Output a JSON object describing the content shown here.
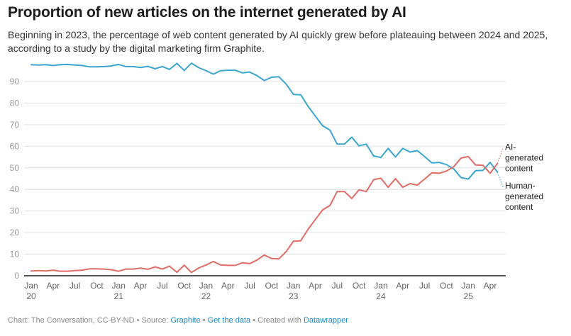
{
  "header": {
    "title": "Proportion of new articles on the internet generated by AI",
    "subtitle": "Beginning in 2023, the percentage of web content generated by AI quickly grew before plateauing between 2024 and 2025, according to a study by the digital marketing firm Graphite."
  },
  "footer": {
    "chart_credit": "Chart: The Conversation, CC-BY-ND",
    "sep": " • ",
    "source_label": "Source: ",
    "source_link": "Graphite",
    "data_link": "Get the data",
    "created_label": "Created with ",
    "created_link": "Datawrapper"
  },
  "colors": {
    "ai": "#e06c66",
    "human": "#3aa6cf",
    "grid": "#e0e0e0",
    "axis": "#1d1d1d",
    "tick_text": "#9a9a9a"
  },
  "chart_data": {
    "type": "line",
    "title": "Proportion of new articles on the internet generated by AI",
    "xlabel": "",
    "ylabel": "",
    "ylim": [
      0,
      100
    ],
    "yticks": [
      0,
      10,
      20,
      30,
      40,
      50,
      60,
      70,
      80,
      90
    ],
    "grid": true,
    "x_start": "2020-01",
    "x_step": "month",
    "xticks": [
      {
        "i": 0,
        "label": "Jan",
        "year": "20"
      },
      {
        "i": 3,
        "label": "Apr",
        "year": ""
      },
      {
        "i": 6,
        "label": "Jul",
        "year": ""
      },
      {
        "i": 9,
        "label": "Oct",
        "year": ""
      },
      {
        "i": 12,
        "label": "Jan",
        "year": "21"
      },
      {
        "i": 15,
        "label": "Apr",
        "year": ""
      },
      {
        "i": 18,
        "label": "Jul",
        "year": ""
      },
      {
        "i": 21,
        "label": "Oct",
        "year": ""
      },
      {
        "i": 24,
        "label": "Jan",
        "year": "22"
      },
      {
        "i": 27,
        "label": "Apr",
        "year": ""
      },
      {
        "i": 30,
        "label": "Jul",
        "year": ""
      },
      {
        "i": 33,
        "label": "Oct",
        "year": ""
      },
      {
        "i": 36,
        "label": "Jan",
        "year": "23"
      },
      {
        "i": 39,
        "label": "Apr",
        "year": ""
      },
      {
        "i": 42,
        "label": "Jul",
        "year": ""
      },
      {
        "i": 45,
        "label": "Oct",
        "year": ""
      },
      {
        "i": 48,
        "label": "Jan",
        "year": "24"
      },
      {
        "i": 51,
        "label": "Apr",
        "year": ""
      },
      {
        "i": 54,
        "label": "Jul",
        "year": ""
      },
      {
        "i": 57,
        "label": "Oct",
        "year": ""
      },
      {
        "i": 60,
        "label": "Jan",
        "year": "25"
      },
      {
        "i": 63,
        "label": "Apr",
        "year": ""
      }
    ],
    "series": [
      {
        "name": "Human-generated content",
        "label_lines": [
          "Human-",
          "generated",
          "content"
        ],
        "color": "#3aa6cf",
        "values": [
          97.8,
          97.6,
          97.8,
          97.4,
          97.8,
          97.9,
          97.6,
          97.4,
          96.8,
          96.8,
          96.9,
          97.2,
          97.9,
          96.9,
          96.9,
          96.5,
          97.0,
          95.9,
          96.9,
          95.6,
          98.4,
          95.1,
          98.5,
          96.4,
          95.0,
          93.4,
          95.0,
          95.2,
          95.2,
          94.0,
          94.4,
          92.7,
          90.4,
          92.0,
          92.2,
          88.8,
          84.0,
          83.8,
          78.5,
          74.0,
          69.5,
          67.5,
          61.0,
          61.0,
          64.2,
          60.2,
          61.0,
          55.5,
          54.8,
          59.0,
          55.0,
          59.0,
          57.3,
          58.0,
          55.2,
          52.3,
          52.5,
          51.5,
          49.5,
          45.5,
          44.8,
          48.7,
          48.8,
          52.5,
          48.0
        ],
        "end_extension": 41.0
      },
      {
        "name": "AI-generated content",
        "label_lines": [
          "AI-",
          "generated",
          "content"
        ],
        "color": "#e06c66",
        "values": [
          2.2,
          2.4,
          2.2,
          2.6,
          2.1,
          2.1,
          2.4,
          2.6,
          3.2,
          3.2,
          3.1,
          2.8,
          2.1,
          3.1,
          3.1,
          3.5,
          3.0,
          4.1,
          3.1,
          4.4,
          1.6,
          4.9,
          1.5,
          3.6,
          5.0,
          6.6,
          5.0,
          4.8,
          4.8,
          6.0,
          5.6,
          7.3,
          9.6,
          8.0,
          7.8,
          11.2,
          16.0,
          16.2,
          21.5,
          26.0,
          30.5,
          32.5,
          39.0,
          39.0,
          35.8,
          39.8,
          39.0,
          44.5,
          45.2,
          41.0,
          45.0,
          41.0,
          42.7,
          42.0,
          44.8,
          47.7,
          47.5,
          48.5,
          50.5,
          54.5,
          55.2,
          51.3,
          51.2,
          47.5,
          52.0
        ],
        "end_extension": 59.0
      }
    ]
  }
}
